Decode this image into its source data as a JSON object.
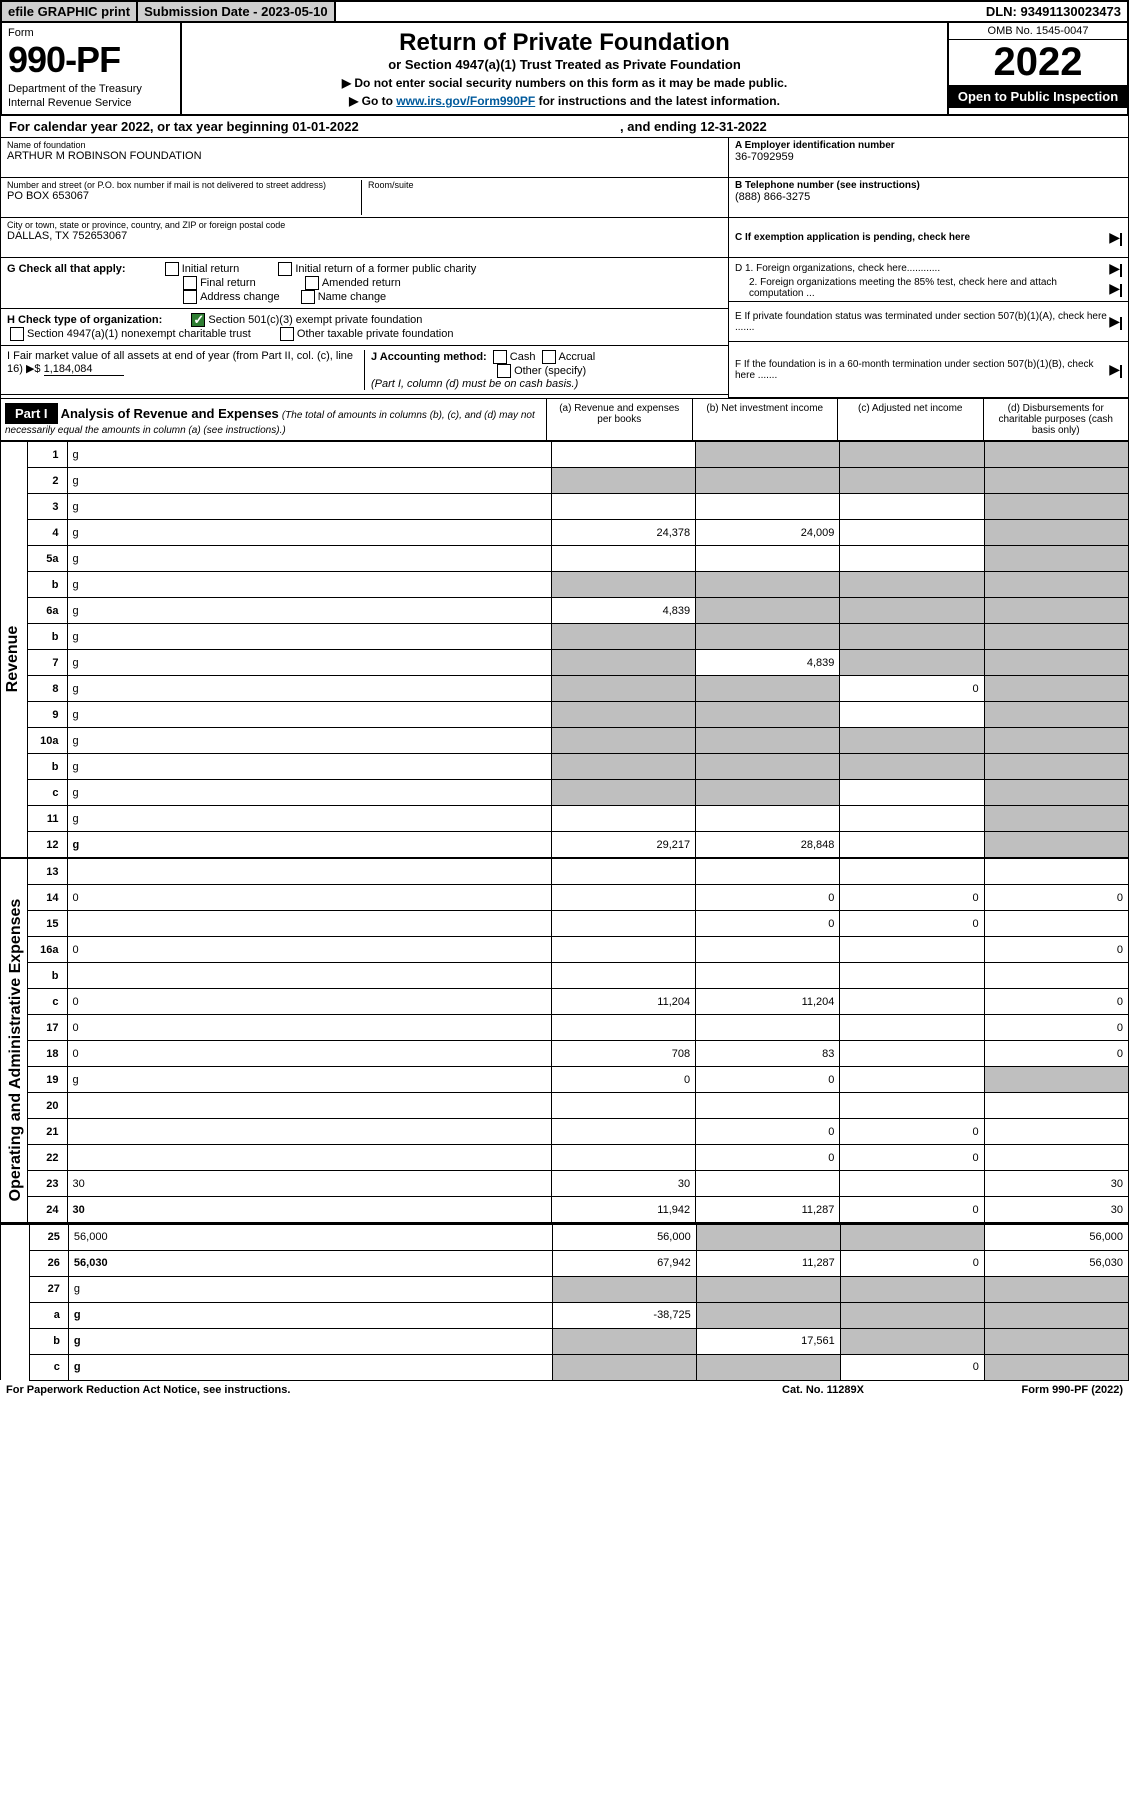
{
  "top": {
    "efile": "efile GRAPHIC print",
    "subdate": "Submission Date - 2023-05-10",
    "dln": "DLN: 93491130023473"
  },
  "hdr": {
    "form": "Form",
    "num": "990-PF",
    "dept": "Department of the Treasury",
    "irs": "Internal Revenue Service",
    "title": "Return of Private Foundation",
    "sub1": "or Section 4947(a)(1) Trust Treated as Private Foundation",
    "sub2a": "▶ Do not enter social security numbers on this form as it may be made public.",
    "sub2b": "▶ Go to ",
    "link": "www.irs.gov/Form990PF",
    "sub2c": " for instructions and the latest information.",
    "omb": "OMB No. 1545-0047",
    "year": "2022",
    "open": "Open to Public Inspection"
  },
  "cal": {
    "begin": "For calendar year 2022, or tax year beginning 01-01-2022",
    "end": ", and ending 12-31-2022"
  },
  "ident": {
    "name_label": "Name of foundation",
    "name": "ARTHUR M ROBINSON FOUNDATION",
    "addr_label": "Number and street (or P.O. box number if mail is not delivered to street address)",
    "addr": "PO BOX 653067",
    "room_label": "Room/suite",
    "city_label": "City or town, state or province, country, and ZIP or foreign postal code",
    "city": "DALLAS, TX  752653067",
    "ein_label": "A Employer identification number",
    "ein": "36-7092959",
    "tel_label": "B Telephone number (see instructions)",
    "tel": "(888) 866-3275",
    "c_label": "C If exemption application is pending, check here",
    "d1": "D 1. Foreign organizations, check here............",
    "d2": "2. Foreign organizations meeting the 85% test, check here and attach computation ...",
    "e": "E  If private foundation status was terminated under section 507(b)(1)(A), check here .......",
    "f": "F  If the foundation is in a 60-month termination under section 507(b)(1)(B), check here ......."
  },
  "g": {
    "label": "G Check all that apply:",
    "opts": [
      "Initial return",
      "Final return",
      "Address change",
      "Initial return of a former public charity",
      "Amended return",
      "Name change"
    ]
  },
  "h": {
    "label": "H Check type of organization:",
    "opt1": "Section 501(c)(3) exempt private foundation",
    "opt2": "Section 4947(a)(1) nonexempt charitable trust",
    "opt3": "Other taxable private foundation"
  },
  "i": {
    "label": "I Fair market value of all assets at end of year (from Part II, col. (c), line 16) ▶$",
    "val": "1,184,084"
  },
  "j": {
    "label": "J Accounting method:",
    "cash": "Cash",
    "accrual": "Accrual",
    "other": "Other (specify)",
    "note": "(Part I, column (d) must be on cash basis.)"
  },
  "part1": {
    "tag": "Part I",
    "title": "Analysis of Revenue and Expenses",
    "desc": "(The total of amounts in columns (b), (c), and (d) may not necessarily equal the amounts in column (a) (see instructions).)",
    "cols": {
      "a": "(a)   Revenue and expenses per books",
      "b": "(b)   Net investment income",
      "c": "(c)   Adjusted net income",
      "d": "(d)   Disbursements for charitable purposes (cash basis only)"
    }
  },
  "side": {
    "rev": "Revenue",
    "ops": "Operating and Administrative Expenses"
  },
  "rows": [
    {
      "n": "1",
      "d": "g",
      "a": "",
      "b": "g",
      "c": "g"
    },
    {
      "n": "2",
      "d": "g",
      "a": "g",
      "b": "g",
      "c": "g"
    },
    {
      "n": "3",
      "d": "g",
      "a": "",
      "b": "",
      "c": ""
    },
    {
      "n": "4",
      "d": "g",
      "a": "24,378",
      "b": "24,009",
      "c": ""
    },
    {
      "n": "5a",
      "d": "g",
      "a": "",
      "b": "",
      "c": ""
    },
    {
      "n": "b",
      "d": "g",
      "a": "g",
      "b": "g",
      "c": "g"
    },
    {
      "n": "6a",
      "d": "g",
      "a": "4,839",
      "b": "g",
      "c": "g"
    },
    {
      "n": "b",
      "d": "g",
      "a": "g",
      "b": "g",
      "c": "g"
    },
    {
      "n": "7",
      "d": "g",
      "a": "g",
      "b": "4,839",
      "c": "g"
    },
    {
      "n": "8",
      "d": "g",
      "a": "g",
      "b": "g",
      "c": "0"
    },
    {
      "n": "9",
      "d": "g",
      "a": "g",
      "b": "g",
      "c": ""
    },
    {
      "n": "10a",
      "d": "g",
      "a": "g",
      "b": "g",
      "c": "g"
    },
    {
      "n": "b",
      "d": "g",
      "a": "g",
      "b": "g",
      "c": "g"
    },
    {
      "n": "c",
      "d": "g",
      "a": "g",
      "b": "g",
      "c": ""
    },
    {
      "n": "11",
      "d": "g",
      "a": "",
      "b": "",
      "c": ""
    },
    {
      "n": "12",
      "d": "g",
      "a": "29,217",
      "b": "28,848",
      "c": "",
      "bold": true
    },
    {
      "n": "13",
      "d": "",
      "a": "",
      "b": "",
      "c": ""
    },
    {
      "n": "14",
      "d": "0",
      "a": "",
      "b": "0",
      "c": "0"
    },
    {
      "n": "15",
      "d": "",
      "a": "",
      "b": "0",
      "c": "0"
    },
    {
      "n": "16a",
      "d": "0",
      "a": "",
      "b": "",
      "c": ""
    },
    {
      "n": "b",
      "d": "",
      "a": "",
      "b": "",
      "c": ""
    },
    {
      "n": "c",
      "d": "0",
      "a": "11,204",
      "b": "11,204",
      "c": ""
    },
    {
      "n": "17",
      "d": "0",
      "a": "",
      "b": "",
      "c": ""
    },
    {
      "n": "18",
      "d": "0",
      "a": "708",
      "b": "83",
      "c": ""
    },
    {
      "n": "19",
      "d": "g",
      "a": "0",
      "b": "0",
      "c": ""
    },
    {
      "n": "20",
      "d": "",
      "a": "",
      "b": "",
      "c": ""
    },
    {
      "n": "21",
      "d": "",
      "a": "",
      "b": "0",
      "c": "0"
    },
    {
      "n": "22",
      "d": "",
      "a": "",
      "b": "0",
      "c": "0"
    },
    {
      "n": "23",
      "d": "30",
      "a": "30",
      "b": "",
      "c": ""
    },
    {
      "n": "24",
      "d": "30",
      "a": "11,942",
      "b": "11,287",
      "c": "0",
      "bold": true
    },
    {
      "n": "25",
      "d": "56,000",
      "a": "56,000",
      "b": "g",
      "c": "g"
    },
    {
      "n": "26",
      "d": "56,030",
      "a": "67,942",
      "b": "11,287",
      "c": "0",
      "bold": true
    },
    {
      "n": "27",
      "d": "g",
      "a": "g",
      "b": "g",
      "c": "g"
    },
    {
      "n": "a",
      "d": "g",
      "a": "-38,725",
      "b": "g",
      "c": "g",
      "bold": true
    },
    {
      "n": "b",
      "d": "g",
      "a": "g",
      "b": "17,561",
      "c": "g",
      "bold": true
    },
    {
      "n": "c",
      "d": "g",
      "a": "g",
      "b": "g",
      "c": "0",
      "bold": true
    }
  ],
  "footer": {
    "f1": "For Paperwork Reduction Act Notice, see instructions.",
    "f2": "Cat. No. 11289X",
    "f3": "Form 990-PF (2022)"
  },
  "colors": {
    "grey": "#bfbfbf",
    "black": "#000000",
    "link": "#005a9c",
    "green": "#2e7d32"
  }
}
